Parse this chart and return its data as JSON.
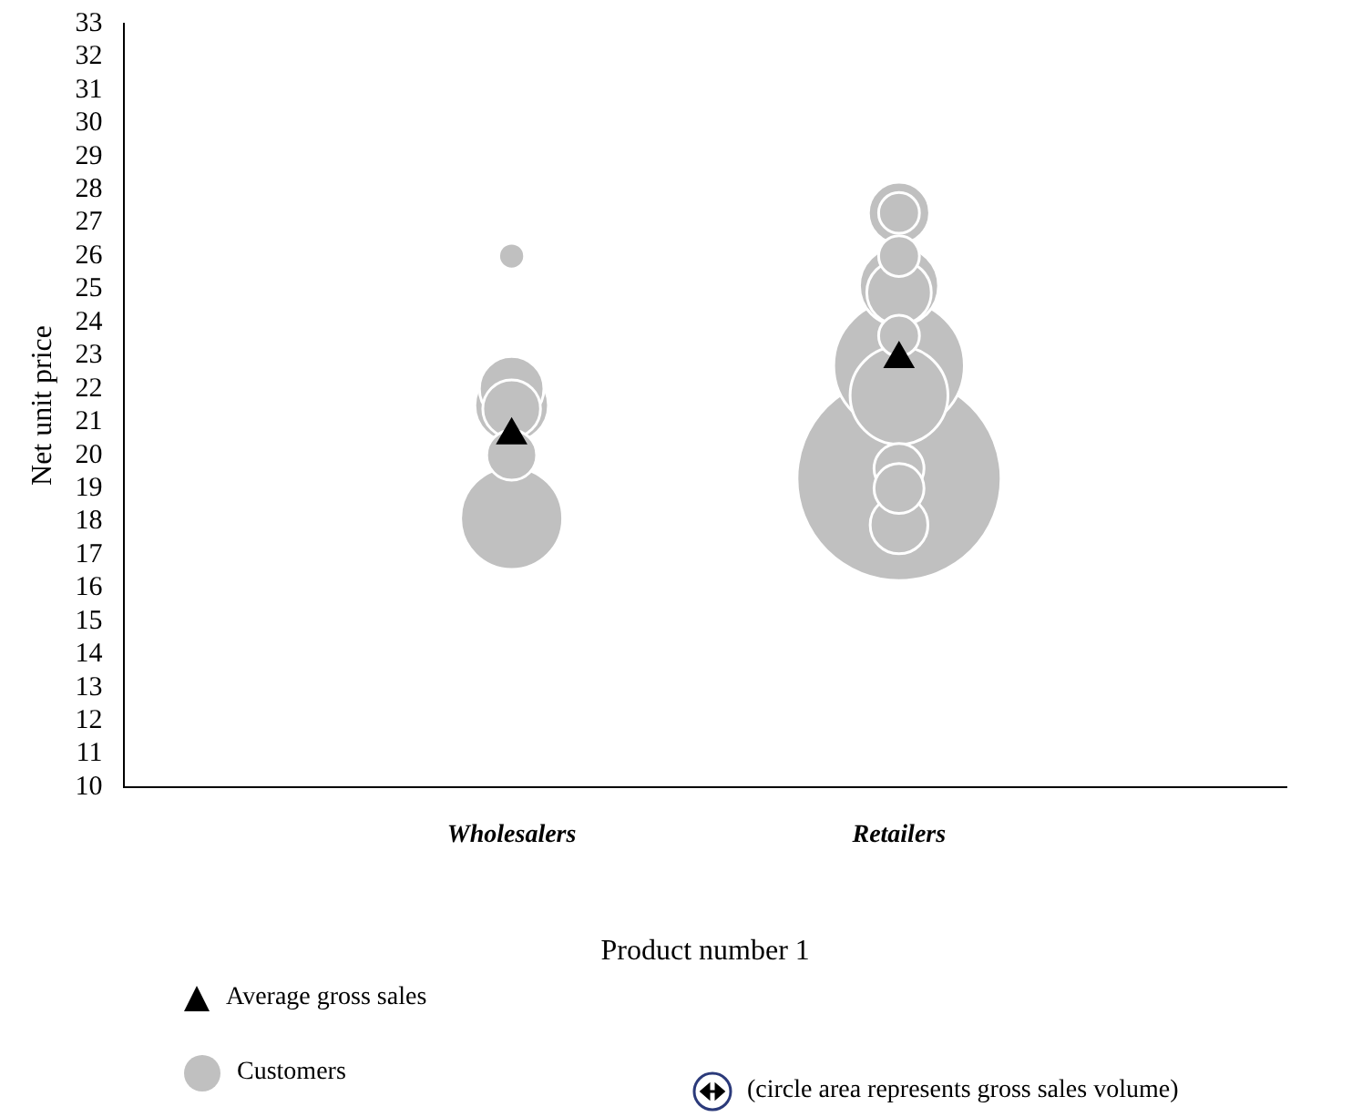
{
  "chart_data": {
    "type": "bubble",
    "xlabel": "Product number 1",
    "ylabel": "Net unit price",
    "categories": [
      "Wholesalers",
      "Retailers"
    ],
    "ylim": [
      10,
      33
    ],
    "yticks": [
      10,
      11,
      12,
      13,
      14,
      15,
      16,
      17,
      18,
      19,
      20,
      21,
      22,
      23,
      24,
      25,
      26,
      27,
      28,
      29,
      30,
      31,
      32,
      33
    ],
    "legend": "bottom left",
    "series": [
      {
        "name": "Customers",
        "color": "#c0c0c0",
        "marker": "circle",
        "x": [
          "Retailers",
          "Retailers",
          "Wholesalers",
          "Retailers",
          "Retailers",
          "Wholesalers",
          "Retailers",
          "Wholesalers",
          "Retailers",
          "Wholesalers",
          "Retailers",
          "Wholesalers",
          "Retailers",
          "Retailers",
          "Retailers",
          "Retailers",
          "Retailers",
          "Wholesalers"
        ],
        "values": [
          19.3,
          22.7,
          18.1,
          21.8,
          25.1,
          21.5,
          24.9,
          22.0,
          27.3,
          21.4,
          17.9,
          20.0,
          19.6,
          19.0,
          27.3,
          26.0,
          23.6,
          26.0
        ],
        "sizes": [
          1,
          0.41,
          0.25,
          0.23,
          0.15,
          0.13,
          0.1,
          0.1,
          0.09,
          0.08,
          0.08,
          0.06,
          0.06,
          0.06,
          0.04,
          0.04,
          0.04,
          0.016
        ]
      },
      {
        "name": "Average gross sales",
        "type": "scatter",
        "color": "#000000",
        "marker": "triangle",
        "x": [
          "Wholesalers",
          "Retailers"
        ],
        "values": [
          20.6,
          22.9
        ]
      }
    ],
    "annotations": [
      "(circle area represents gross sales volume)"
    ]
  }
}
